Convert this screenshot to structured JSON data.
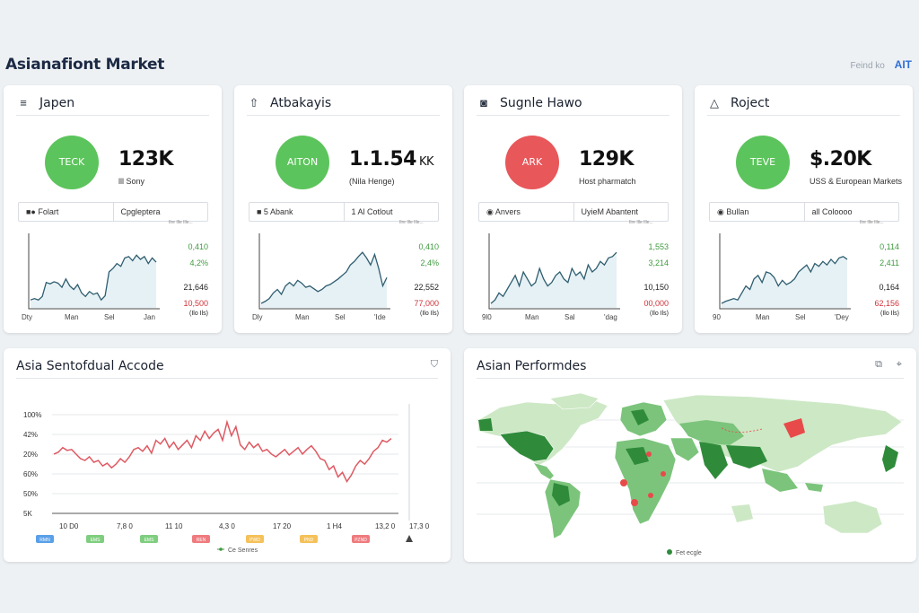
{
  "header": {
    "title": "Asianafiont Market",
    "right_text": "Feind ko",
    "logo": "AIT"
  },
  "cards": [
    {
      "title": "Japen",
      "icon": "≡",
      "icon_name": "list-icon",
      "circle_label": "TECK",
      "circle_color": "#5cc45c",
      "value": "123K",
      "sub": "lll Sony",
      "tabs": [
        "■● Folart",
        "Cpgleptera"
      ],
      "legend_text": "Ilre Ille Ille...",
      "stats": [
        {
          "v": "0,410",
          "c": "g"
        },
        {
          "v": "4,2%",
          "c": "g"
        },
        {
          "v": "21,646",
          "c": "k"
        },
        {
          "v": "10,500",
          "c": "r"
        },
        {
          "v": "(Ilo Ils)",
          "c": "k"
        }
      ],
      "xticks": [
        "Dty",
        "Man",
        "Sel",
        "Jan"
      ],
      "series": [
        0.1,
        0.12,
        0.1,
        0.15,
        0.35,
        0.33,
        0.36,
        0.34,
        0.28,
        0.4,
        0.3,
        0.25,
        0.32,
        0.2,
        0.15,
        0.22,
        0.18,
        0.2,
        0.1,
        0.16,
        0.5,
        0.55,
        0.62,
        0.58,
        0.7,
        0.72,
        0.66,
        0.74,
        0.68,
        0.72,
        0.62,
        0.7,
        0.64
      ]
    },
    {
      "title": "Atbakayis",
      "icon": "⇧",
      "icon_name": "upload-icon",
      "circle_label": "AITON",
      "circle_color": "#5cc45c",
      "value": "1.1.54",
      "value_suffix": "KK",
      "sub": "(Nila Henge)",
      "tabs": [
        "■ 5 Abank",
        "1 Al Cotlout"
      ],
      "legend_text": "Ilre Ille Ille...",
      "stats": [
        {
          "v": "0,410",
          "c": "g"
        },
        {
          "v": "2,4%",
          "c": "g"
        },
        {
          "v": "22,552",
          "c": "k"
        },
        {
          "v": "77,000",
          "c": "r"
        },
        {
          "v": "(Ilo Ils)",
          "c": "k"
        }
      ],
      "xticks": [
        "Dly",
        "Man",
        "Sel",
        "'Ide"
      ],
      "series": [
        0.05,
        0.08,
        0.12,
        0.2,
        0.25,
        0.18,
        0.3,
        0.35,
        0.3,
        0.38,
        0.34,
        0.28,
        0.3,
        0.26,
        0.22,
        0.25,
        0.3,
        0.32,
        0.36,
        0.4,
        0.45,
        0.5,
        0.6,
        0.65,
        0.72,
        0.78,
        0.7,
        0.6,
        0.75,
        0.55,
        0.3,
        0.42
      ]
    },
    {
      "title": "Sugnle Hawo",
      "icon": "◙",
      "icon_name": "camera-icon",
      "circle_label": "ARK",
      "circle_color": "#e8575a",
      "value": "129K",
      "sub": "Host pharmatch",
      "tabs": [
        "◉ Anvers",
        "UyieM Abantent"
      ],
      "legend_text": "Ilre Ille Ille...",
      "stats": [
        {
          "v": "1,553",
          "c": "g"
        },
        {
          "v": "3,214",
          "c": "g"
        },
        {
          "v": "10,150",
          "c": "k"
        },
        {
          "v": "00,000",
          "c": "r"
        },
        {
          "v": "(Ilo Ils)",
          "c": "k"
        }
      ],
      "xticks": [
        "9l0",
        "Man",
        "Sal",
        "'dag"
      ],
      "series": [
        0.05,
        0.1,
        0.2,
        0.15,
        0.25,
        0.35,
        0.45,
        0.3,
        0.5,
        0.4,
        0.3,
        0.35,
        0.55,
        0.4,
        0.3,
        0.35,
        0.45,
        0.5,
        0.4,
        0.35,
        0.55,
        0.45,
        0.5,
        0.4,
        0.6,
        0.5,
        0.55,
        0.65,
        0.6,
        0.7,
        0.72,
        0.78
      ]
    },
    {
      "title": "Roject",
      "icon": "△",
      "icon_name": "triangle-icon",
      "circle_label": "TEVE",
      "circle_color": "#5cc45c",
      "value": "$.20K",
      "sub": "USS & European Markets",
      "tabs": [
        "◉ Bullan",
        "all Coloooo"
      ],
      "legend_text": "Ilre Ille Ille...",
      "stats": [
        {
          "v": "0,114",
          "c": "g"
        },
        {
          "v": "2,411",
          "c": "g"
        },
        {
          "v": "0,164",
          "c": "k"
        },
        {
          "v": "62,156",
          "c": "r"
        },
        {
          "v": "(Ilo Ils)",
          "c": "k"
        }
      ],
      "xticks": [
        "90",
        "Man",
        "Sel",
        "'Dey"
      ],
      "series": [
        0.05,
        0.08,
        0.1,
        0.12,
        0.1,
        0.2,
        0.3,
        0.25,
        0.4,
        0.45,
        0.35,
        0.5,
        0.48,
        0.42,
        0.3,
        0.38,
        0.32,
        0.35,
        0.4,
        0.5,
        0.55,
        0.6,
        0.5,
        0.62,
        0.58,
        0.65,
        0.6,
        0.68,
        0.62,
        0.7,
        0.72,
        0.68
      ]
    }
  ],
  "chart_data": {
    "type": "line",
    "title": "Asia Sentofdual Accode",
    "yticks": [
      "100%",
      "42%",
      "20%",
      "60%",
      "50%",
      "5K"
    ],
    "xticks": [
      "10 D0",
      "7,8 0",
      "11 10",
      "4,3 0",
      "17 20",
      "1 H4",
      "13,2 0",
      "17,3 0"
    ],
    "legend": "Ce Senres",
    "pills": [
      {
        "t": "RMN",
        "c": "#5aa0e8"
      },
      {
        "t": "EMS",
        "c": "#7fce7f"
      },
      {
        "t": "EMS",
        "c": "#7fce7f"
      },
      {
        "t": "REN",
        "c": "#ef7b7e"
      },
      {
        "t": "PWD",
        "c": "#f5c15a"
      },
      {
        "t": "PND",
        "c": "#f5c15a"
      },
      {
        "t": "PZND",
        "c": "#ef7b7e"
      }
    ],
    "series": [
      0.55,
      0.57,
      0.62,
      0.59,
      0.6,
      0.55,
      0.5,
      0.48,
      0.52,
      0.46,
      0.48,
      0.42,
      0.45,
      0.4,
      0.44,
      0.5,
      0.46,
      0.52,
      0.6,
      0.62,
      0.58,
      0.64,
      0.56,
      0.7,
      0.66,
      0.72,
      0.62,
      0.68,
      0.6,
      0.65,
      0.7,
      0.62,
      0.75,
      0.7,
      0.8,
      0.72,
      0.78,
      0.82,
      0.7,
      0.9,
      0.75,
      0.85,
      0.65,
      0.6,
      0.68,
      0.62,
      0.66,
      0.58,
      0.6,
      0.55,
      0.52,
      0.56,
      0.6,
      0.54,
      0.58,
      0.62,
      0.55,
      0.6,
      0.64,
      0.58,
      0.5,
      0.48,
      0.38,
      0.42,
      0.3,
      0.35,
      0.25,
      0.32,
      0.42,
      0.48,
      0.44,
      0.5,
      0.58,
      0.62,
      0.7,
      0.68,
      0.72
    ]
  },
  "map": {
    "title": "Asian Performdes",
    "legend": "Fet ecgle",
    "land_color": "#cde8c5",
    "mid_color": "#7cc47c",
    "dark_color": "#2f8b3a",
    "highlight_color": "#e84a4a"
  },
  "side_icons": {
    "left": "Σ",
    "right": "◉"
  }
}
